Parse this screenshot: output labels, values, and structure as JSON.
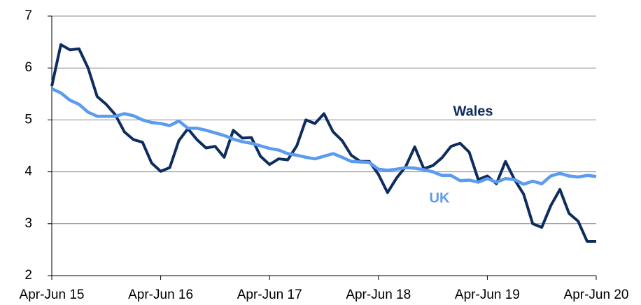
{
  "chart_data": {
    "type": "line",
    "categories": [
      "Apr-Jun 15",
      null,
      null,
      null,
      null,
      null,
      null,
      null,
      null,
      null,
      null,
      null,
      "Apr-Jun 16",
      null,
      null,
      null,
      null,
      null,
      null,
      null,
      null,
      null,
      null,
      null,
      "Apr-Jun 17",
      null,
      null,
      null,
      null,
      null,
      null,
      null,
      null,
      null,
      null,
      null,
      "Apr-Jun 18",
      null,
      null,
      null,
      null,
      null,
      null,
      null,
      null,
      null,
      null,
      null,
      "Apr-Jun 19",
      null,
      null,
      null,
      null,
      null,
      null,
      null,
      null,
      null,
      null,
      null,
      "Apr-Jun 20"
    ],
    "series": [
      {
        "name": "Wales",
        "color": "#0d2d5e",
        "values": [
          5.65,
          6.45,
          6.35,
          6.37,
          6.0,
          5.45,
          5.3,
          5.1,
          4.77,
          4.62,
          4.57,
          4.17,
          4.01,
          4.08,
          4.6,
          4.83,
          4.62,
          4.46,
          4.49,
          4.28,
          4.8,
          4.65,
          4.66,
          4.3,
          4.14,
          4.25,
          4.23,
          4.5,
          5.0,
          4.93,
          5.12,
          4.77,
          4.6,
          4.32,
          4.2,
          4.2,
          3.95,
          3.6,
          3.88,
          4.1,
          4.48,
          4.06,
          4.12,
          4.27,
          4.49,
          4.55,
          4.38,
          3.85,
          3.92,
          3.77,
          4.2,
          3.85,
          3.57,
          3.0,
          2.93,
          3.35,
          3.66,
          3.2,
          3.05,
          2.66,
          2.66
        ]
      },
      {
        "name": "UK",
        "color": "#5b9bf0",
        "values": [
          5.6,
          5.52,
          5.38,
          5.3,
          5.15,
          5.07,
          5.07,
          5.07,
          5.12,
          5.08,
          5.0,
          4.95,
          4.93,
          4.89,
          4.98,
          4.84,
          4.84,
          4.8,
          4.75,
          4.7,
          4.63,
          4.58,
          4.55,
          4.5,
          4.45,
          4.42,
          4.35,
          4.32,
          4.28,
          4.25,
          4.3,
          4.35,
          4.28,
          4.2,
          4.19,
          4.18,
          4.05,
          4.03,
          4.05,
          4.08,
          4.07,
          4.04,
          4.0,
          3.93,
          3.93,
          3.83,
          3.84,
          3.8,
          3.87,
          3.8,
          3.87,
          3.85,
          3.76,
          3.82,
          3.77,
          3.92,
          3.97,
          3.92,
          3.9,
          3.93,
          3.91
        ]
      }
    ],
    "ylim": [
      2,
      7
    ],
    "yticks": [
      2,
      3,
      4,
      5,
      6,
      7
    ],
    "grid": true
  }
}
